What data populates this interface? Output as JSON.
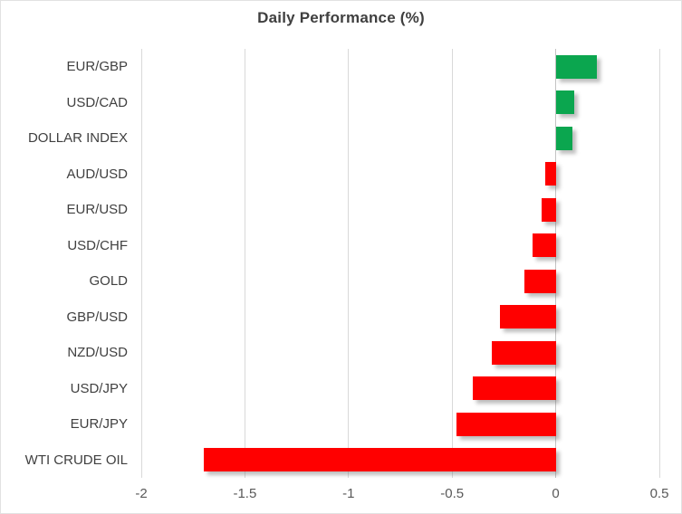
{
  "chart_data": {
    "type": "bar",
    "orientation": "horizontal",
    "title": "Daily Performance (%)",
    "categories": [
      "EUR/GBP",
      "USD/CAD",
      "DOLLAR INDEX",
      "AUD/USD",
      "EUR/USD",
      "USD/CHF",
      "GOLD",
      "GBP/USD",
      "NZD/USD",
      "USD/JPY",
      "EUR/JPY",
      "WTI CRUDE OIL"
    ],
    "values": [
      0.2,
      0.09,
      0.08,
      -0.05,
      -0.07,
      -0.11,
      -0.15,
      -0.27,
      -0.31,
      -0.4,
      -0.48,
      -1.7
    ],
    "xlim": [
      -2,
      0.5
    ],
    "xticks": [
      -2,
      -1.5,
      -1,
      -0.5,
      0,
      0.5
    ],
    "xtick_labels": [
      "-2",
      "-1.5",
      "-1",
      "-0.5",
      "0",
      "0.5"
    ],
    "grid": true,
    "legend": "none",
    "xlabel": "",
    "ylabel": "",
    "colors": {
      "positive_bar": "#0BA64F",
      "negative_bar": "#FF0000",
      "gridline": "#D9D9D9",
      "zero_line": "#C3C3C3",
      "title_text": "#3F3F3F",
      "category_text": "#404040",
      "tick_text": "#595959",
      "background": "#FFFFFF"
    }
  }
}
